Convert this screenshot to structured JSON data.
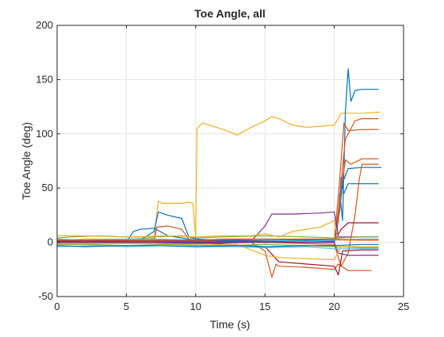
{
  "chart_data": {
    "type": "line",
    "title": "Toe Angle, all",
    "xlabel": "Time (s)",
    "ylabel": "Toe Angle (deg)",
    "xlim": [
      0,
      25
    ],
    "ylim": [
      -50,
      200
    ],
    "x_ticks": [
      0,
      5,
      10,
      15,
      20,
      25
    ],
    "y_ticks": [
      -50,
      0,
      50,
      100,
      150,
      200
    ],
    "x_tick_labels": [
      "0",
      "5",
      "10",
      "15",
      "20",
      "25"
    ],
    "y_tick_labels": [
      "-50",
      "0",
      "50",
      "100",
      "150",
      "200"
    ],
    "grid": true,
    "legend": "none",
    "series": [
      {
        "color": "#EDB120",
        "points": [
          [
            0,
            2
          ],
          [
            2,
            3
          ],
          [
            5,
            3
          ],
          [
            7,
            4
          ],
          [
            7.3,
            38
          ],
          [
            7.6,
            36
          ],
          [
            8,
            36
          ],
          [
            9,
            36
          ],
          [
            9.5,
            37
          ],
          [
            9.8,
            36
          ],
          [
            10,
            5
          ],
          [
            10.05,
            60
          ],
          [
            10.1,
            105
          ],
          [
            10.5,
            110
          ],
          [
            11,
            108
          ],
          [
            12,
            104
          ],
          [
            13,
            99
          ],
          [
            14,
            106
          ],
          [
            15,
            112
          ],
          [
            15.5,
            116
          ],
          [
            16,
            114
          ],
          [
            17,
            108
          ],
          [
            18,
            106
          ],
          [
            19,
            107
          ],
          [
            20,
            108
          ],
          [
            20.5,
            119
          ],
          [
            21,
            119
          ],
          [
            22,
            119
          ],
          [
            23.3,
            120
          ]
        ]
      },
      {
        "color": "#0072BD",
        "points": [
          [
            0,
            1
          ],
          [
            2,
            0
          ],
          [
            5,
            1
          ],
          [
            6,
            2
          ],
          [
            7,
            10
          ],
          [
            7.3,
            28
          ],
          [
            8,
            25
          ],
          [
            9,
            22
          ],
          [
            9.5,
            5
          ],
          [
            10,
            3
          ],
          [
            12,
            2
          ],
          [
            15,
            2
          ],
          [
            18,
            2
          ],
          [
            20,
            2
          ],
          [
            20.2,
            10
          ],
          [
            20.4,
            45
          ],
          [
            20.6,
            20
          ],
          [
            20.8,
            120
          ],
          [
            21,
            160
          ],
          [
            21.2,
            130
          ],
          [
            21.5,
            140
          ],
          [
            22,
            141
          ],
          [
            23.2,
            141
          ]
        ]
      },
      {
        "color": "#0072BD",
        "points": [
          [
            0,
            0
          ],
          [
            3,
            0
          ],
          [
            5,
            0
          ],
          [
            5.5,
            10
          ],
          [
            6,
            12
          ],
          [
            7,
            13
          ],
          [
            8,
            6
          ],
          [
            9,
            4
          ],
          [
            10,
            2
          ],
          [
            15,
            2
          ],
          [
            20,
            2
          ],
          [
            20.3,
            20
          ],
          [
            20.5,
            60
          ],
          [
            20.7,
            45
          ],
          [
            21,
            54
          ],
          [
            22,
            54
          ],
          [
            23.2,
            54
          ]
        ]
      },
      {
        "color": "#0072BD",
        "points": [
          [
            0,
            -1
          ],
          [
            5,
            -1
          ],
          [
            10,
            -1
          ],
          [
            15,
            0
          ],
          [
            20,
            0
          ],
          [
            20.4,
            30
          ],
          [
            20.6,
            55
          ],
          [
            21,
            68
          ],
          [
            22,
            69
          ],
          [
            23.4,
            69
          ]
        ]
      },
      {
        "color": "#D95319",
        "points": [
          [
            0,
            1
          ],
          [
            2,
            1
          ],
          [
            5,
            1
          ],
          [
            7,
            2
          ],
          [
            7.2,
            14
          ],
          [
            8,
            15
          ],
          [
            9,
            12
          ],
          [
            9.5,
            3
          ],
          [
            10,
            2
          ],
          [
            12,
            1
          ],
          [
            15,
            1
          ],
          [
            20,
            1
          ],
          [
            20.4,
            30
          ],
          [
            20.6,
            70
          ],
          [
            20.8,
            95
          ],
          [
            21,
            100
          ],
          [
            21.5,
            112
          ],
          [
            22,
            114
          ],
          [
            23.2,
            114
          ]
        ]
      },
      {
        "color": "#D95319",
        "points": [
          [
            0,
            0
          ],
          [
            5,
            0
          ],
          [
            10,
            0
          ],
          [
            15,
            0
          ],
          [
            20,
            0
          ],
          [
            20.4,
            60
          ],
          [
            20.7,
            110
          ],
          [
            21,
            103
          ],
          [
            22,
            104
          ],
          [
            23.2,
            104
          ]
        ]
      },
      {
        "color": "#D95319",
        "points": [
          [
            0,
            0
          ],
          [
            5,
            0
          ],
          [
            10,
            0
          ],
          [
            15,
            0
          ],
          [
            20,
            0
          ],
          [
            20.4,
            40
          ],
          [
            20.8,
            76
          ],
          [
            21.2,
            72
          ],
          [
            22,
            77
          ],
          [
            23.2,
            77
          ]
        ]
      },
      {
        "color": "#D95319",
        "points": [
          [
            0,
            0
          ],
          [
            5,
            0
          ],
          [
            10,
            0
          ],
          [
            15,
            0
          ],
          [
            20,
            -2
          ],
          [
            20.5,
            -22
          ],
          [
            21,
            -10
          ],
          [
            21.5,
            25
          ],
          [
            21.8,
            58
          ],
          [
            22,
            72
          ],
          [
            23.2,
            72
          ]
        ]
      },
      {
        "color": "#D95319",
        "points": [
          [
            0,
            0
          ],
          [
            5,
            0
          ],
          [
            10,
            0
          ],
          [
            14,
            0
          ],
          [
            15,
            -8
          ],
          [
            15.5,
            -32
          ],
          [
            15.8,
            -20
          ],
          [
            16,
            -22
          ],
          [
            18,
            -23
          ],
          [
            20,
            -25
          ],
          [
            20.3,
            -20
          ],
          [
            21,
            -26
          ],
          [
            22,
            -26
          ],
          [
            22.7,
            -26
          ]
        ]
      },
      {
        "color": "#A2142F",
        "points": [
          [
            0,
            1
          ],
          [
            5,
            1
          ],
          [
            10,
            1
          ],
          [
            15,
            1
          ],
          [
            20,
            1
          ],
          [
            20.5,
            12
          ],
          [
            21,
            18
          ],
          [
            22,
            18
          ],
          [
            23.2,
            18
          ]
        ]
      },
      {
        "color": "#A2142F",
        "points": [
          [
            0,
            0
          ],
          [
            5,
            0
          ],
          [
            10,
            0
          ],
          [
            15,
            -4
          ],
          [
            16,
            -18
          ],
          [
            18,
            -20
          ],
          [
            20,
            -22
          ],
          [
            20.3,
            -30
          ],
          [
            20.6,
            -8
          ],
          [
            22,
            -7
          ],
          [
            23.2,
            -7
          ]
        ]
      },
      {
        "color": "#7E2F8E",
        "points": [
          [
            0,
            1
          ],
          [
            5,
            1
          ],
          [
            10,
            1
          ],
          [
            14,
            1
          ],
          [
            15,
            15
          ],
          [
            15.5,
            26
          ],
          [
            17,
            26
          ],
          [
            19,
            27
          ],
          [
            20,
            28
          ],
          [
            20.3,
            5
          ],
          [
            22,
            5
          ],
          [
            23.2,
            5
          ]
        ]
      },
      {
        "color": "#7E2F8E",
        "points": [
          [
            0,
            0
          ],
          [
            5,
            0
          ],
          [
            10,
            0
          ],
          [
            15,
            0
          ],
          [
            20,
            0
          ],
          [
            20.3,
            -10
          ],
          [
            21,
            -12
          ],
          [
            22,
            -12
          ],
          [
            23.2,
            -12
          ]
        ]
      },
      {
        "color": "#77AC30",
        "points": [
          [
            0,
            4
          ],
          [
            1,
            5
          ],
          [
            3,
            6
          ],
          [
            5,
            5
          ],
          [
            7,
            5
          ],
          [
            9,
            6
          ],
          [
            10,
            4
          ],
          [
            12,
            5
          ],
          [
            15,
            6
          ],
          [
            18,
            5
          ],
          [
            20,
            4
          ],
          [
            22,
            5
          ],
          [
            23.2,
            5
          ]
        ]
      },
      {
        "color": "#77AC30",
        "points": [
          [
            0,
            -2
          ],
          [
            2,
            -2
          ],
          [
            5,
            -3
          ],
          [
            8,
            -2
          ],
          [
            10,
            -3
          ],
          [
            12,
            -3
          ],
          [
            15,
            -2
          ],
          [
            18,
            -3
          ],
          [
            20,
            -4
          ],
          [
            22,
            -5
          ],
          [
            23.2,
            -5
          ]
        ]
      },
      {
        "color": "#4DBEEE",
        "points": [
          [
            0,
            3
          ],
          [
            2,
            2
          ],
          [
            5,
            3
          ],
          [
            7,
            3
          ],
          [
            10,
            2
          ],
          [
            13,
            3
          ],
          [
            15,
            2
          ],
          [
            18,
            1
          ],
          [
            20,
            2
          ],
          [
            22,
            3
          ],
          [
            23.2,
            3
          ]
        ]
      },
      {
        "color": "#4DBEEE",
        "points": [
          [
            0,
            -4
          ],
          [
            3,
            -3
          ],
          [
            5,
            -4
          ],
          [
            8,
            -3
          ],
          [
            10,
            -4
          ],
          [
            13,
            -4
          ],
          [
            15,
            -5
          ],
          [
            18,
            -4
          ],
          [
            20,
            -6
          ],
          [
            22,
            -6
          ],
          [
            23.2,
            -6
          ]
        ]
      },
      {
        "color": "#EDB120",
        "points": [
          [
            0,
            6
          ],
          [
            2,
            6
          ],
          [
            5,
            5
          ],
          [
            8,
            6
          ],
          [
            10,
            5
          ],
          [
            12,
            6
          ],
          [
            14,
            6
          ],
          [
            15,
            8
          ],
          [
            16,
            5
          ],
          [
            17,
            10
          ],
          [
            19,
            14
          ],
          [
            20,
            20
          ],
          [
            20.3,
            2
          ],
          [
            22,
            2
          ],
          [
            23.2,
            2
          ]
        ]
      },
      {
        "color": "#EDB120",
        "points": [
          [
            0,
            -1
          ],
          [
            3,
            -1
          ],
          [
            5,
            -1
          ],
          [
            7,
            -1
          ],
          [
            10,
            -2
          ],
          [
            13,
            -2
          ],
          [
            15,
            -12
          ],
          [
            16,
            -14
          ],
          [
            18,
            -15
          ],
          [
            20,
            -16
          ],
          [
            20.5,
            -4
          ],
          [
            22,
            -4
          ],
          [
            23.2,
            -4
          ]
        ]
      },
      {
        "color": "#0072BD",
        "points": [
          [
            0,
            -3
          ],
          [
            2,
            -4
          ],
          [
            5,
            -3
          ],
          [
            7,
            -3
          ],
          [
            10,
            -4
          ],
          [
            13,
            -3
          ],
          [
            15,
            -4
          ],
          [
            18,
            -3
          ],
          [
            20,
            -3
          ],
          [
            22,
            -2
          ],
          [
            23.2,
            -2
          ]
        ]
      },
      {
        "color": "#D95319",
        "points": [
          [
            0,
            2
          ],
          [
            3,
            2
          ],
          [
            5,
            2
          ],
          [
            8,
            2
          ],
          [
            10,
            2
          ],
          [
            12,
            3
          ],
          [
            15,
            3
          ],
          [
            18,
            3
          ],
          [
            20,
            3
          ],
          [
            22,
            2
          ],
          [
            23.2,
            2
          ]
        ]
      }
    ]
  }
}
